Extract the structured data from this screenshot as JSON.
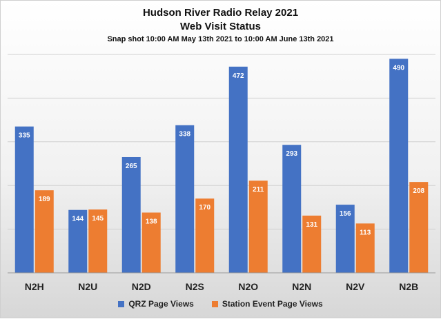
{
  "chart_data": {
    "type": "bar",
    "title": "Hudson River Radio Relay 2021",
    "subtitle": "Web Visit Status",
    "subtitle2": "Snap shot 10:00 AM May 13th 2021 to 10:00 AM June 13th 2021",
    "categories": [
      "N2H",
      "N2U",
      "N2D",
      "N2S",
      "N2O",
      "N2N",
      "N2V",
      "N2B"
    ],
    "series": [
      {
        "name": "QRZ Page Views",
        "color": "#4472C4",
        "values": [
          335,
          144,
          265,
          338,
          472,
          293,
          156,
          490
        ]
      },
      {
        "name": "Station Event Page Views",
        "color": "#ED7D31",
        "values": [
          189,
          145,
          138,
          170,
          211,
          131,
          113,
          208
        ]
      }
    ],
    "ylim": [
      0,
      500
    ],
    "grid": true,
    "legend_position": "bottom"
  }
}
